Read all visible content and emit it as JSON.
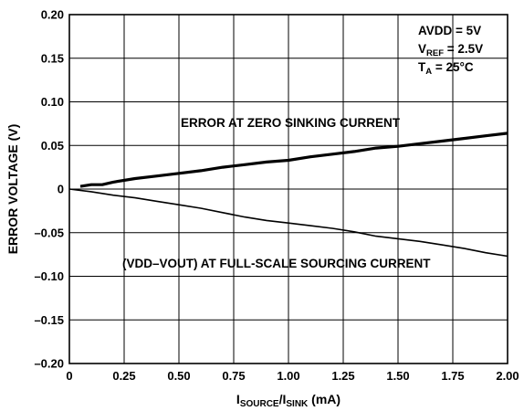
{
  "chart_data": {
    "type": "line",
    "xlabel_main": "I",
    "xlabel_sub1": "SOURCE",
    "xlabel_sep": "/I",
    "xlabel_sub2": "SINK",
    "xlabel_unit": " (mA)",
    "ylabel": "ERROR VOLTAGE (V)",
    "xlim": [
      0,
      2.0
    ],
    "ylim": [
      -0.2,
      0.2
    ],
    "x_ticks": [
      "0",
      "0.25",
      "0.50",
      "0.75",
      "1.00",
      "1.25",
      "1.50",
      "1.75",
      "2.00"
    ],
    "y_ticks": [
      "0.20",
      "0.15",
      "0.10",
      "0.05",
      "0",
      "–0.05",
      "–0.10",
      "–0.15",
      "–0.20"
    ],
    "grid": true,
    "conditions": {
      "line1": "AVDD = 5V",
      "line2_main": "V",
      "line2_sub": "REF",
      "line2_rest": " = 2.5V",
      "line3_main": "T",
      "line3_sub": "A",
      "line3_rest": " = 25°C"
    },
    "series": [
      {
        "name": "ERROR AT ZERO SINKING CURRENT",
        "x": [
          0.05,
          0.1,
          0.15,
          0.2,
          0.3,
          0.4,
          0.5,
          0.6,
          0.7,
          0.8,
          0.9,
          1.0,
          1.1,
          1.2,
          1.3,
          1.4,
          1.5,
          1.6,
          1.7,
          1.8,
          1.9,
          2.0
        ],
        "y": [
          0.003,
          0.005,
          0.005,
          0.008,
          0.012,
          0.015,
          0.018,
          0.021,
          0.025,
          0.028,
          0.031,
          0.033,
          0.037,
          0.04,
          0.043,
          0.047,
          0.049,
          0.052,
          0.055,
          0.058,
          0.061,
          0.064
        ]
      },
      {
        "name": "(VDD–VOUT) AT FULL-SCALE SOURCING CURRENT",
        "x": [
          0,
          0.1,
          0.2,
          0.3,
          0.4,
          0.5,
          0.6,
          0.7,
          0.8,
          0.9,
          1.0,
          1.1,
          1.2,
          1.3,
          1.4,
          1.5,
          1.6,
          1.7,
          1.8,
          1.9,
          2.0
        ],
        "y": [
          0.0,
          -0.003,
          -0.007,
          -0.01,
          -0.014,
          -0.018,
          -0.022,
          -0.027,
          -0.032,
          -0.036,
          -0.039,
          -0.042,
          -0.045,
          -0.049,
          -0.054,
          -0.057,
          -0.06,
          -0.064,
          -0.068,
          -0.073,
          -0.077
        ]
      }
    ]
  }
}
